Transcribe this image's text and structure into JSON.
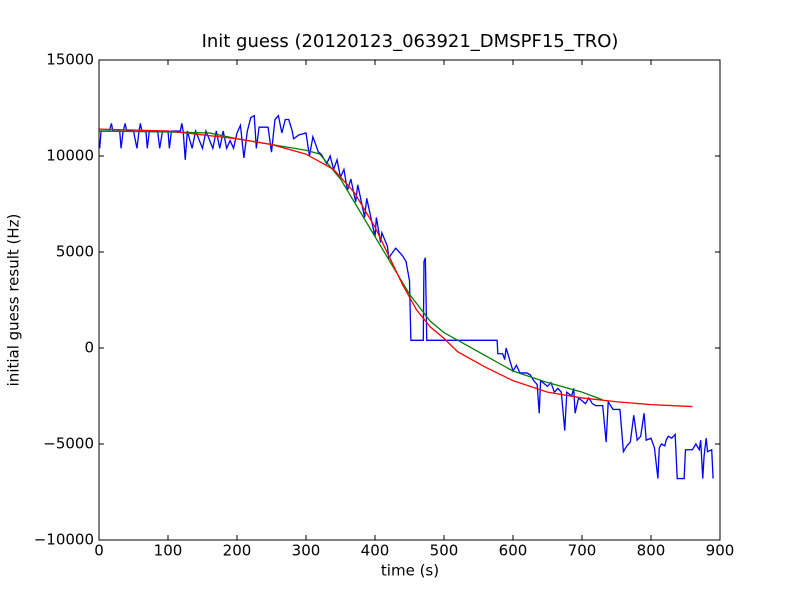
{
  "chart_data": {
    "type": "line",
    "title": "Init guess (20120123_063921_DMSPF15_TRO)",
    "xlabel": "time (s)",
    "ylabel": "initial guess result (Hz)",
    "xlim": [
      0,
      900
    ],
    "ylim": [
      -10000,
      15000
    ],
    "xticks": [
      0,
      100,
      200,
      300,
      400,
      500,
      600,
      700,
      800,
      900
    ],
    "yticks": [
      {
        "value": -10000,
        "label": "−10000"
      },
      {
        "value": -5000,
        "label": "−5000"
      },
      0,
      5000,
      10000,
      15000
    ],
    "series": [
      {
        "color": "#0000ff",
        "x": [
          1,
          3,
          15,
          18,
          20,
          30,
          32,
          35,
          38,
          40,
          50,
          55,
          58,
          60,
          62,
          68,
          70,
          73,
          85,
          88,
          92,
          100,
          102,
          105,
          118,
          120,
          122,
          125,
          128,
          135,
          140,
          150,
          155,
          165,
          170,
          175,
          180,
          185,
          190,
          195,
          200,
          205,
          210,
          215,
          220,
          225,
          228,
          232,
          245,
          250,
          255,
          260,
          265,
          270,
          275,
          280,
          282,
          290,
          300,
          305,
          310,
          318,
          322,
          330,
          335,
          340,
          345,
          350,
          355,
          360,
          365,
          372,
          375,
          385,
          388,
          400,
          402,
          408,
          410,
          418,
          420,
          430,
          440,
          445,
          450,
          452,
          470,
          471,
          473,
          475,
          577,
          578,
          585,
          588,
          590,
          595,
          600,
          605,
          610,
          620,
          625,
          630,
          635,
          638,
          640,
          650,
          655,
          660,
          665,
          670,
          675,
          678,
          685,
          688,
          690,
          695,
          705,
          710,
          715,
          720,
          730,
          735,
          738,
          745,
          755,
          760,
          765,
          770,
          775,
          780,
          785,
          790,
          793,
          800,
          805,
          810,
          812,
          815,
          820,
          822,
          825,
          830,
          835,
          838,
          848,
          850,
          860,
          865,
          870,
          872,
          875,
          877,
          880,
          882,
          888,
          890
        ],
        "values": [
          10400,
          11300,
          11300,
          11700,
          11300,
          11300,
          10400,
          11300,
          11700,
          11300,
          11300,
          10400,
          11300,
          11700,
          11300,
          11300,
          10400,
          11300,
          11300,
          10400,
          11300,
          11300,
          10400,
          11300,
          11300,
          11700,
          11300,
          9800,
          11300,
          10400,
          11300,
          10400,
          11300,
          10400,
          11300,
          10400,
          11300,
          10400,
          10800,
          10400,
          11200,
          11600,
          9900,
          11300,
          12000,
          12100,
          10400,
          11500,
          11500,
          10200,
          11900,
          12100,
          11200,
          11900,
          11900,
          11300,
          10900,
          11100,
          11200,
          10000,
          11000,
          10200,
          10100,
          9600,
          10000,
          9300,
          9800,
          8900,
          9300,
          8200,
          8800,
          7600,
          8500,
          6800,
          7800,
          5800,
          6800,
          5500,
          6000,
          5300,
          4700,
          5200,
          4800,
          4500,
          3500,
          400,
          400,
          4500,
          4700,
          400,
          400,
          -300,
          -300,
          -600,
          0,
          -600,
          -1200,
          -900,
          -1300,
          -1300,
          -1400,
          -1700,
          -1900,
          -3400,
          -1700,
          -2000,
          -1800,
          -2300,
          -2100,
          -2300,
          -4300,
          -2300,
          -2500,
          -2100,
          -3400,
          -2600,
          -2900,
          -2600,
          -2900,
          -3000,
          -3000,
          -4900,
          -2800,
          -3200,
          -3200,
          -5400,
          -5100,
          -4900,
          -3500,
          -4800,
          -4600,
          -3400,
          -4800,
          -4700,
          -5200,
          -6800,
          -5200,
          -5000,
          -5100,
          -4800,
          -4600,
          -4700,
          -4500,
          -6800,
          -6800,
          -5300,
          -5300,
          -5000,
          -5300,
          -4800,
          -6800,
          -5600,
          -4700,
          -5400,
          -5300,
          -6800
        ]
      },
      {
        "color": "#008000",
        "x": [
          0,
          100,
          160,
          200,
          250,
          300,
          320,
          350,
          380,
          400,
          420,
          450,
          480,
          500,
          520,
          560,
          600,
          650,
          700,
          730
        ],
        "values": [
          11300,
          11250,
          11200,
          10900,
          10600,
          10300,
          10100,
          8800,
          7000,
          5800,
          4600,
          2800,
          1400,
          800,
          400,
          -400,
          -1200,
          -1800,
          -2300,
          -2700
        ]
      },
      {
        "color": "#ff0000",
        "x": [
          0,
          100,
          200,
          250,
          300,
          340,
          370,
          400,
          420,
          440,
          460,
          480,
          500,
          520,
          560,
          600,
          650,
          700,
          750,
          800,
          860
        ],
        "values": [
          11400,
          11300,
          10900,
          10600,
          10100,
          9300,
          8100,
          6300,
          4800,
          3300,
          2000,
          1100,
          500,
          -200,
          -1000,
          -1700,
          -2300,
          -2600,
          -2800,
          -2950,
          -3050
        ]
      }
    ]
  }
}
